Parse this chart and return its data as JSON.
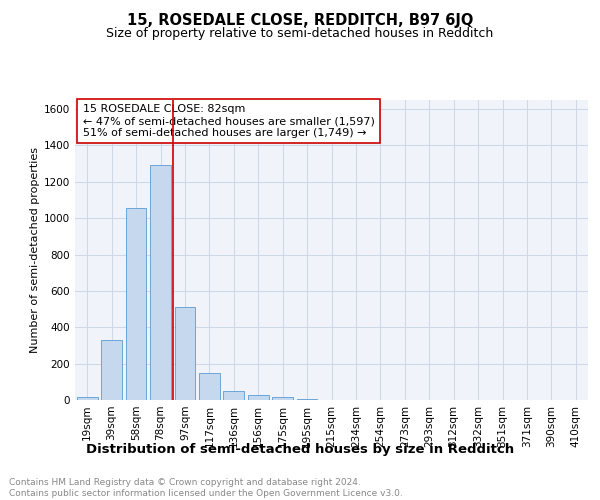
{
  "title": "15, ROSEDALE CLOSE, REDDITCH, B97 6JQ",
  "subtitle": "Size of property relative to semi-detached houses in Redditch",
  "xlabel": "Distribution of semi-detached houses by size in Redditch",
  "ylabel": "Number of semi-detached properties",
  "categories": [
    "19sqm",
    "39sqm",
    "58sqm",
    "78sqm",
    "97sqm",
    "117sqm",
    "136sqm",
    "156sqm",
    "175sqm",
    "195sqm",
    "215sqm",
    "234sqm",
    "254sqm",
    "273sqm",
    "293sqm",
    "312sqm",
    "332sqm",
    "351sqm",
    "371sqm",
    "390sqm",
    "410sqm"
  ],
  "values": [
    15,
    330,
    1055,
    1290,
    510,
    148,
    48,
    25,
    15,
    8,
    0,
    0,
    0,
    0,
    0,
    0,
    0,
    0,
    0,
    0,
    0
  ],
  "bar_color": "#c5d8ed",
  "bar_edgecolor": "#5b9bd5",
  "vline_x_index": 3.5,
  "vline_color": "#cc0000",
  "annotation_text": "15 ROSEDALE CLOSE: 82sqm\n← 47% of semi-detached houses are smaller (1,597)\n51% of semi-detached houses are larger (1,749) →",
  "annotation_box_facecolor": "white",
  "annotation_box_edgecolor": "#cc0000",
  "ylim": [
    0,
    1650
  ],
  "yticks": [
    0,
    200,
    400,
    600,
    800,
    1000,
    1200,
    1400,
    1600
  ],
  "grid_color": "#d0d8e8",
  "footnote": "Contains HM Land Registry data © Crown copyright and database right 2024.\nContains public sector information licensed under the Open Government Licence v3.0.",
  "title_fontsize": 10.5,
  "subtitle_fontsize": 9,
  "xlabel_fontsize": 9.5,
  "ylabel_fontsize": 8,
  "tick_fontsize": 7.5,
  "annot_fontsize": 8,
  "footnote_fontsize": 6.5,
  "bg_color": "#f0f4fa"
}
